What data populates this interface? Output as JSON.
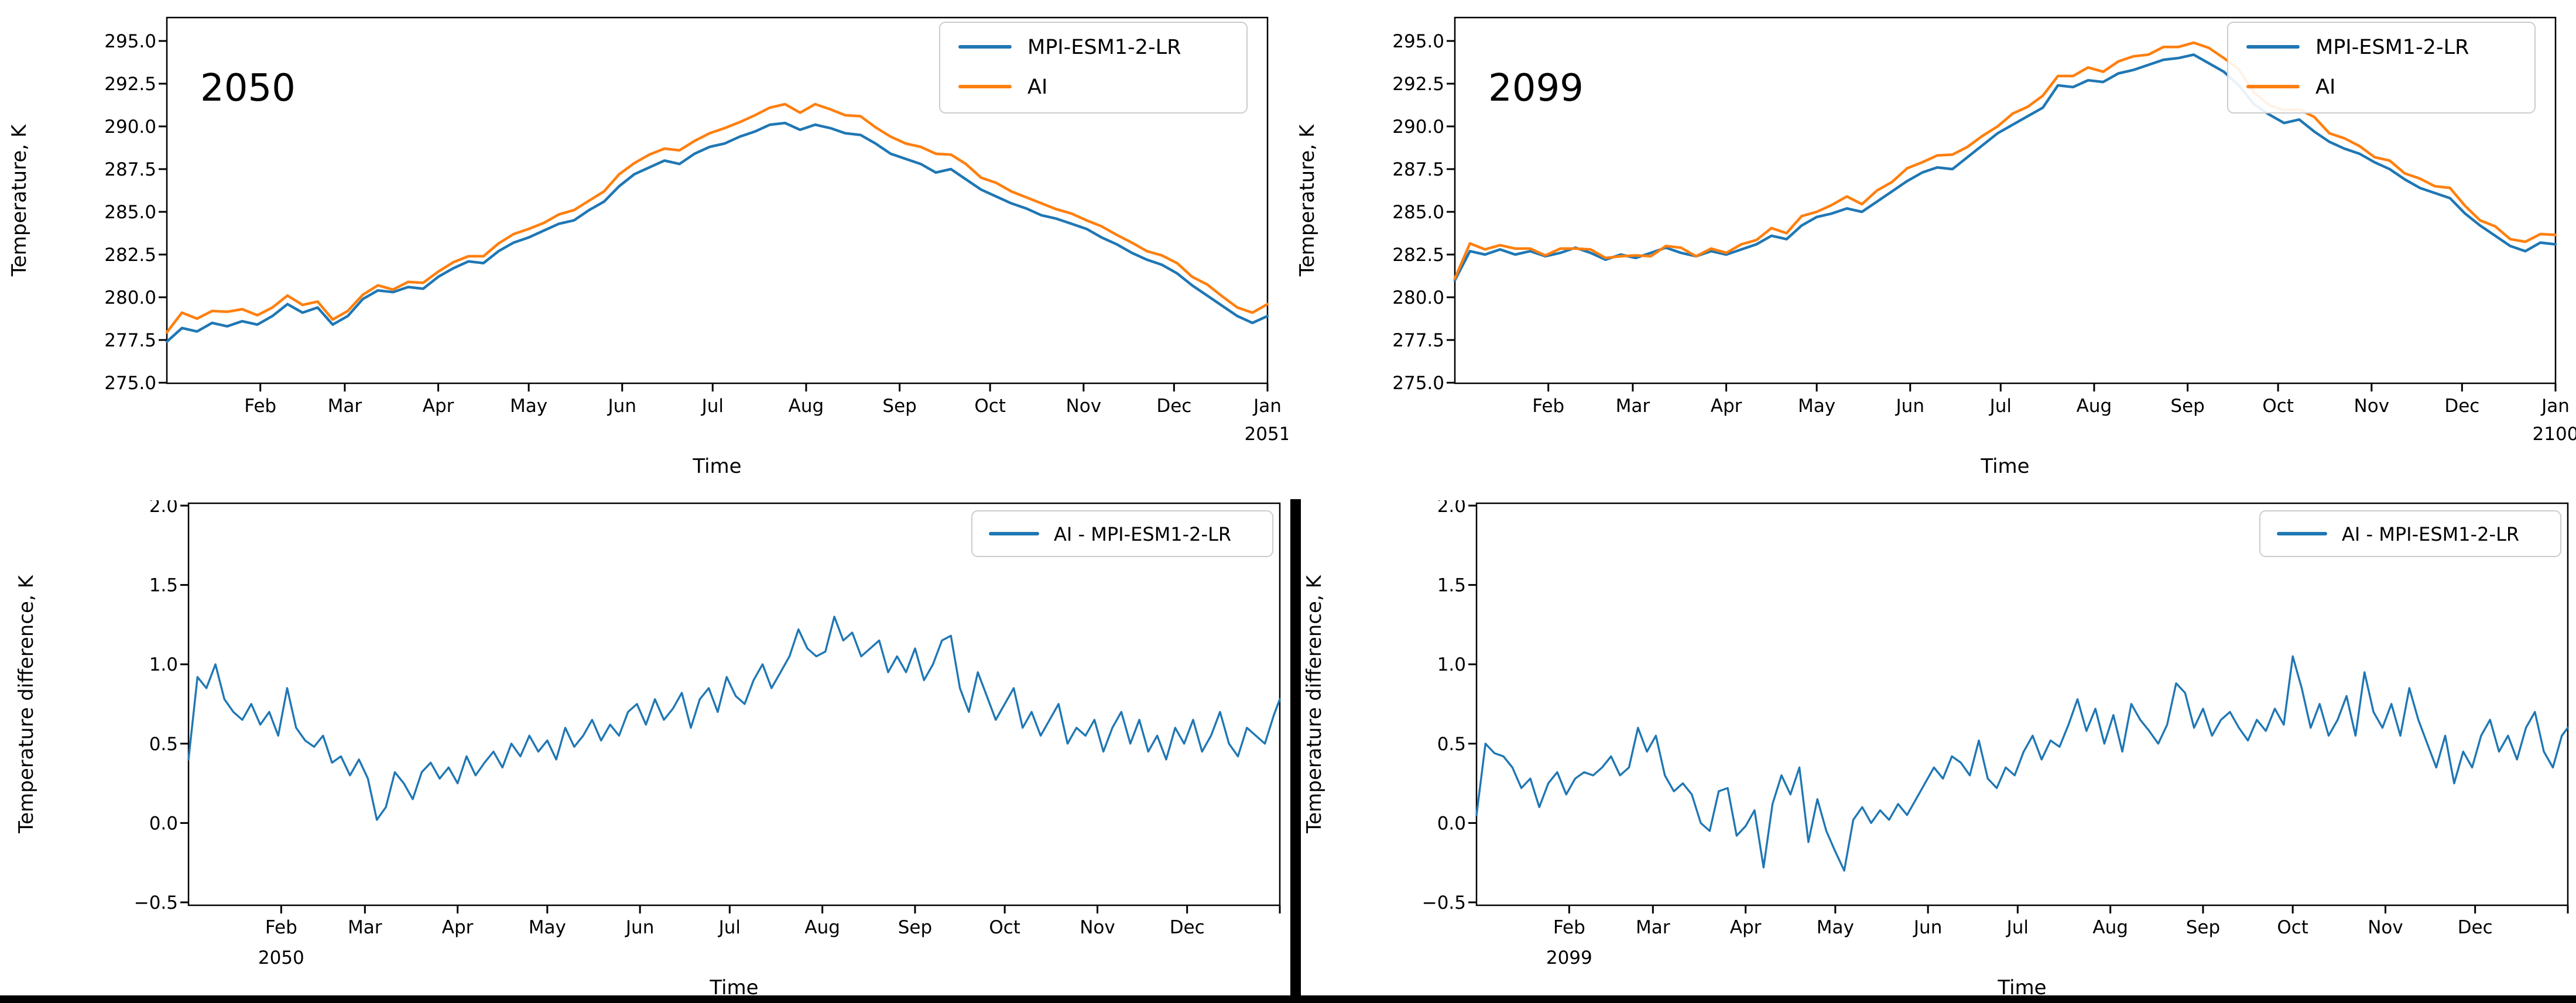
{
  "figure": {
    "background": "#ffffff",
    "divider_color": "#000000",
    "bottom_border_color": "#000000"
  },
  "colors": {
    "mpi": "#1f77b4",
    "ai": "#ff7f0e",
    "diff": "#1f77b4",
    "axis": "#000000",
    "legend_edge": "#cccccc"
  },
  "chart_data": [
    {
      "type": "line",
      "kind": "top",
      "panel": "top-left",
      "annotation": "2050",
      "xlabel": "Time",
      "ylabel": "Temperature, K",
      "x_unit": "day-of-year",
      "x_domain": [
        0,
        365
      ],
      "ylim": [
        274.95,
        296.4
      ],
      "grid": false,
      "legend_position": "upper right",
      "yticks": [
        {
          "v": 275.0,
          "label": "275.0"
        },
        {
          "v": 277.5,
          "label": "277.5"
        },
        {
          "v": 280.0,
          "label": "280.0"
        },
        {
          "v": 282.5,
          "label": "282.5"
        },
        {
          "v": 285.0,
          "label": "285.0"
        },
        {
          "v": 287.5,
          "label": "287.5"
        },
        {
          "v": 290.0,
          "label": "290.0"
        },
        {
          "v": 292.5,
          "label": "292.5"
        },
        {
          "v": 295.0,
          "label": "295.0"
        }
      ],
      "xticks": [
        {
          "day": 31,
          "label": "Feb"
        },
        {
          "day": 59,
          "label": "Mar"
        },
        {
          "day": 90,
          "label": "Apr"
        },
        {
          "day": 120,
          "label": "May"
        },
        {
          "day": 151,
          "label": "Jun"
        },
        {
          "day": 181,
          "label": "Jul"
        },
        {
          "day": 212,
          "label": "Aug"
        },
        {
          "day": 243,
          "label": "Sep"
        },
        {
          "day": 273,
          "label": "Oct"
        },
        {
          "day": 304,
          "label": "Nov"
        },
        {
          "day": 334,
          "label": "Dec"
        },
        {
          "day": 365,
          "label": "Jan",
          "sublabel": "2051"
        }
      ],
      "legend": [
        {
          "label": "MPI-ESM1-2-LR",
          "color": "#1f77b4"
        },
        {
          "label": "AI",
          "color": "#ff7f0e"
        }
      ],
      "series": [
        {
          "name": "MPI-ESM1-2-LR",
          "color": "#1f77b4",
          "x_step_days": 5,
          "y": [
            277.4,
            278.2,
            278.0,
            278.5,
            278.3,
            278.6,
            278.4,
            278.9,
            279.6,
            279.1,
            279.4,
            278.4,
            278.9,
            279.9,
            280.4,
            280.3,
            280.6,
            280.5,
            281.2,
            281.7,
            282.1,
            282.0,
            282.7,
            283.2,
            283.5,
            283.9,
            284.3,
            284.5,
            285.1,
            285.6,
            286.5,
            287.2,
            287.6,
            288.0,
            287.8,
            288.4,
            288.8,
            289.0,
            289.4,
            289.7,
            290.1,
            290.2,
            289.8,
            290.1,
            289.9,
            289.6,
            289.5,
            289.0,
            288.4,
            288.1,
            287.8,
            287.3,
            287.5,
            286.9,
            286.3,
            285.9,
            285.5,
            285.2,
            284.8,
            284.6,
            284.3,
            284.0,
            283.5,
            283.1,
            282.6,
            282.2,
            281.9,
            281.4,
            280.7,
            280.1,
            279.5,
            278.9,
            278.5,
            278.9
          ]
        },
        {
          "name": "AI",
          "color": "#ff7f0e",
          "x_step_days": 5,
          "y": [
            277.95,
            279.1,
            278.75,
            279.2,
            279.15,
            279.3,
            278.95,
            279.4,
            280.1,
            279.55,
            279.75,
            278.7,
            279.2,
            280.15,
            280.7,
            280.45,
            280.9,
            280.85,
            281.5,
            282.05,
            282.4,
            282.4,
            283.15,
            283.7,
            284.0,
            284.35,
            284.85,
            285.1,
            285.65,
            286.2,
            287.2,
            287.85,
            288.35,
            288.7,
            288.6,
            289.15,
            289.6,
            289.9,
            290.25,
            290.65,
            291.1,
            291.3,
            290.8,
            291.3,
            291.0,
            290.65,
            290.6,
            289.95,
            289.4,
            289.0,
            288.8,
            288.4,
            288.35,
            287.8,
            287.0,
            286.7,
            286.2,
            285.85,
            285.5,
            285.15,
            284.9,
            284.5,
            284.15,
            283.65,
            283.2,
            282.7,
            282.45,
            282.0,
            281.2,
            280.75,
            280.05,
            279.4,
            279.1,
            279.6
          ]
        }
      ]
    },
    {
      "type": "line",
      "kind": "top",
      "panel": "top-right",
      "annotation": "2099",
      "xlabel": "Time",
      "ylabel": "Temperature, K",
      "x_unit": "day-of-year",
      "x_domain": [
        0,
        365
      ],
      "ylim": [
        274.95,
        296.4
      ],
      "grid": false,
      "legend_position": "upper right",
      "yticks": [
        {
          "v": 275.0,
          "label": "275.0"
        },
        {
          "v": 277.5,
          "label": "277.5"
        },
        {
          "v": 280.0,
          "label": "280.0"
        },
        {
          "v": 282.5,
          "label": "282.5"
        },
        {
          "v": 285.0,
          "label": "285.0"
        },
        {
          "v": 287.5,
          "label": "287.5"
        },
        {
          "v": 290.0,
          "label": "290.0"
        },
        {
          "v": 292.5,
          "label": "292.5"
        },
        {
          "v": 295.0,
          "label": "295.0"
        }
      ],
      "xticks": [
        {
          "day": 31,
          "label": "Feb"
        },
        {
          "day": 59,
          "label": "Mar"
        },
        {
          "day": 90,
          "label": "Apr"
        },
        {
          "day": 120,
          "label": "May"
        },
        {
          "day": 151,
          "label": "Jun"
        },
        {
          "day": 181,
          "label": "Jul"
        },
        {
          "day": 212,
          "label": "Aug"
        },
        {
          "day": 243,
          "label": "Sep"
        },
        {
          "day": 273,
          "label": "Oct"
        },
        {
          "day": 304,
          "label": "Nov"
        },
        {
          "day": 334,
          "label": "Dec"
        },
        {
          "day": 365,
          "label": "Jan",
          "sublabel": "2100"
        }
      ],
      "legend": [
        {
          "label": "MPI-ESM1-2-LR",
          "color": "#1f77b4"
        },
        {
          "label": "AI",
          "color": "#ff7f0e"
        }
      ],
      "series": [
        {
          "name": "MPI-ESM1-2-LR",
          "color": "#1f77b4",
          "x_step_days": 5,
          "y": [
            281.0,
            282.7,
            282.5,
            282.8,
            282.5,
            282.7,
            282.4,
            282.6,
            282.9,
            282.6,
            282.2,
            282.5,
            282.3,
            282.6,
            282.9,
            282.6,
            282.4,
            282.7,
            282.5,
            282.8,
            283.1,
            283.6,
            283.4,
            284.2,
            284.7,
            284.9,
            285.2,
            285.0,
            285.6,
            286.2,
            286.8,
            287.3,
            287.6,
            287.5,
            288.2,
            288.9,
            289.6,
            290.1,
            290.6,
            291.1,
            292.4,
            292.3,
            292.7,
            292.6,
            293.1,
            293.3,
            293.6,
            293.9,
            294.0,
            294.2,
            293.7,
            293.2,
            292.4,
            291.3,
            290.7,
            290.2,
            290.4,
            289.7,
            289.1,
            288.7,
            288.4,
            287.9,
            287.5,
            286.9,
            286.4,
            286.1,
            285.8,
            284.9,
            284.2,
            283.6,
            283.0,
            282.7,
            283.2,
            283.1
          ]
        },
        {
          "name": "AI",
          "color": "#ff7f0e",
          "x_step_days": 5,
          "y": [
            281.1,
            283.15,
            282.8,
            283.05,
            282.85,
            282.85,
            282.45,
            282.85,
            282.85,
            282.8,
            282.3,
            282.4,
            282.45,
            282.4,
            283.0,
            282.9,
            282.4,
            282.85,
            282.6,
            283.1,
            283.35,
            284.05,
            283.75,
            284.75,
            285.0,
            285.4,
            285.9,
            285.45,
            286.25,
            286.75,
            287.55,
            287.9,
            288.3,
            288.35,
            288.8,
            289.45,
            290.0,
            290.75,
            291.15,
            291.8,
            292.95,
            292.95,
            293.45,
            293.2,
            293.8,
            294.1,
            294.2,
            294.65,
            294.65,
            294.9,
            294.6,
            294.0,
            293.35,
            292.0,
            291.25,
            290.95,
            291.0,
            290.55,
            289.6,
            289.3,
            288.85,
            288.2,
            288.0,
            287.25,
            286.95,
            286.5,
            286.4,
            285.35,
            284.5,
            284.15,
            283.4,
            283.25,
            283.7,
            283.65
          ]
        }
      ]
    },
    {
      "type": "line",
      "kind": "bottom",
      "panel": "bottom-left",
      "annotation": null,
      "xlabel": "Time",
      "ylabel": "Temperature difference, K",
      "x_unit": "day-of-year",
      "x_domain": [
        0,
        365
      ],
      "ylim": [
        -0.52,
        2.02
      ],
      "grid": false,
      "legend_position": "upper right",
      "yticks": [
        {
          "v": -0.5,
          "label": "−0.5"
        },
        {
          "v": 0.0,
          "label": "0.0"
        },
        {
          "v": 0.5,
          "label": "0.5"
        },
        {
          "v": 1.0,
          "label": "1.0"
        },
        {
          "v": 1.5,
          "label": "1.5"
        },
        {
          "v": 2.0,
          "label": "2.0"
        }
      ],
      "xticks": [
        {
          "day": 31,
          "label": "Feb",
          "sublabel": "2050"
        },
        {
          "day": 59,
          "label": "Mar"
        },
        {
          "day": 90,
          "label": "Apr"
        },
        {
          "day": 120,
          "label": "May"
        },
        {
          "day": 151,
          "label": "Jun"
        },
        {
          "day": 181,
          "label": "Jul"
        },
        {
          "day": 212,
          "label": "Aug"
        },
        {
          "day": 243,
          "label": "Sep"
        },
        {
          "day": 273,
          "label": "Oct"
        },
        {
          "day": 304,
          "label": "Nov"
        },
        {
          "day": 334,
          "label": "Dec"
        },
        {
          "day": 365,
          "label": ""
        }
      ],
      "legend": [
        {
          "label": "AI - MPI-ESM1-2-LR",
          "color": "#1f77b4"
        }
      ],
      "series": [
        {
          "name": "AI - MPI-ESM1-2-LR",
          "color": "#1f77b4",
          "x_step_days": 3,
          "y": [
            0.4,
            0.92,
            0.85,
            1.0,
            0.78,
            0.7,
            0.65,
            0.75,
            0.62,
            0.7,
            0.55,
            0.85,
            0.6,
            0.52,
            0.48,
            0.55,
            0.38,
            0.42,
            0.3,
            0.4,
            0.28,
            0.02,
            0.1,
            0.32,
            0.25,
            0.15,
            0.32,
            0.38,
            0.28,
            0.35,
            0.25,
            0.42,
            0.3,
            0.38,
            0.45,
            0.35,
            0.5,
            0.42,
            0.55,
            0.45,
            0.52,
            0.4,
            0.6,
            0.48,
            0.55,
            0.65,
            0.52,
            0.62,
            0.55,
            0.7,
            0.75,
            0.62,
            0.78,
            0.65,
            0.72,
            0.82,
            0.6,
            0.78,
            0.85,
            0.7,
            0.92,
            0.8,
            0.75,
            0.9,
            1.0,
            0.85,
            0.95,
            1.05,
            1.22,
            1.1,
            1.05,
            1.08,
            1.3,
            1.15,
            1.2,
            1.05,
            1.1,
            1.15,
            0.95,
            1.05,
            0.95,
            1.1,
            0.9,
            1.0,
            1.15,
            1.18,
            0.85,
            0.7,
            0.95,
            0.8,
            0.65,
            0.75,
            0.85,
            0.6,
            0.7,
            0.55,
            0.65,
            0.75,
            0.5,
            0.6,
            0.55,
            0.65,
            0.45,
            0.6,
            0.7,
            0.5,
            0.65,
            0.45,
            0.55,
            0.4,
            0.6,
            0.5,
            0.65,
            0.45,
            0.55,
            0.7,
            0.5,
            0.42,
            0.6,
            0.55,
            0.5,
            0.68,
            0.78
          ]
        }
      ]
    },
    {
      "type": "line",
      "kind": "bottom",
      "panel": "bottom-right",
      "annotation": null,
      "xlabel": "Time",
      "ylabel": "Temperature difference, K",
      "x_unit": "day-of-year",
      "x_domain": [
        0,
        365
      ],
      "ylim": [
        -0.52,
        2.02
      ],
      "grid": false,
      "legend_position": "upper right",
      "yticks": [
        {
          "v": -0.5,
          "label": "−0.5"
        },
        {
          "v": 0.0,
          "label": "0.0"
        },
        {
          "v": 0.5,
          "label": "0.5"
        },
        {
          "v": 1.0,
          "label": "1.0"
        },
        {
          "v": 1.5,
          "label": "1.5"
        },
        {
          "v": 2.0,
          "label": "2.0"
        }
      ],
      "xticks": [
        {
          "day": 31,
          "label": "Feb",
          "sublabel": "2099"
        },
        {
          "day": 59,
          "label": "Mar"
        },
        {
          "day": 90,
          "label": "Apr"
        },
        {
          "day": 120,
          "label": "May"
        },
        {
          "day": 151,
          "label": "Jun"
        },
        {
          "day": 181,
          "label": "Jul"
        },
        {
          "day": 212,
          "label": "Aug"
        },
        {
          "day": 243,
          "label": "Sep"
        },
        {
          "day": 273,
          "label": "Oct"
        },
        {
          "day": 304,
          "label": "Nov"
        },
        {
          "day": 334,
          "label": "Dec"
        },
        {
          "day": 365,
          "label": ""
        }
      ],
      "legend": [
        {
          "label": "AI - MPI-ESM1-2-LR",
          "color": "#1f77b4"
        }
      ],
      "series": [
        {
          "name": "AI - MPI-ESM1-2-LR",
          "color": "#1f77b4",
          "x_step_days": 3,
          "y": [
            0.05,
            0.5,
            0.44,
            0.42,
            0.35,
            0.22,
            0.28,
            0.1,
            0.25,
            0.32,
            0.18,
            0.28,
            0.32,
            0.3,
            0.35,
            0.42,
            0.3,
            0.35,
            0.6,
            0.45,
            0.55,
            0.3,
            0.2,
            0.25,
            0.18,
            0.0,
            -0.05,
            0.2,
            0.22,
            -0.08,
            -0.02,
            0.08,
            -0.28,
            0.12,
            0.3,
            0.18,
            0.35,
            -0.12,
            0.15,
            -0.05,
            -0.18,
            -0.3,
            0.02,
            0.1,
            0.0,
            0.08,
            0.02,
            0.12,
            0.05,
            0.15,
            0.25,
            0.35,
            0.28,
            0.42,
            0.38,
            0.3,
            0.52,
            0.28,
            0.22,
            0.35,
            0.3,
            0.45,
            0.55,
            0.4,
            0.52,
            0.48,
            0.62,
            0.78,
            0.58,
            0.72,
            0.5,
            0.68,
            0.45,
            0.75,
            0.65,
            0.58,
            0.5,
            0.62,
            0.88,
            0.82,
            0.6,
            0.72,
            0.55,
            0.65,
            0.7,
            0.6,
            0.52,
            0.65,
            0.58,
            0.72,
            0.62,
            1.05,
            0.85,
            0.6,
            0.75,
            0.55,
            0.65,
            0.8,
            0.55,
            0.95,
            0.7,
            0.6,
            0.75,
            0.55,
            0.85,
            0.65,
            0.5,
            0.35,
            0.55,
            0.25,
            0.45,
            0.35,
            0.55,
            0.65,
            0.45,
            0.55,
            0.4,
            0.6,
            0.7,
            0.45,
            0.35,
            0.55,
            0.6
          ]
        }
      ]
    }
  ]
}
